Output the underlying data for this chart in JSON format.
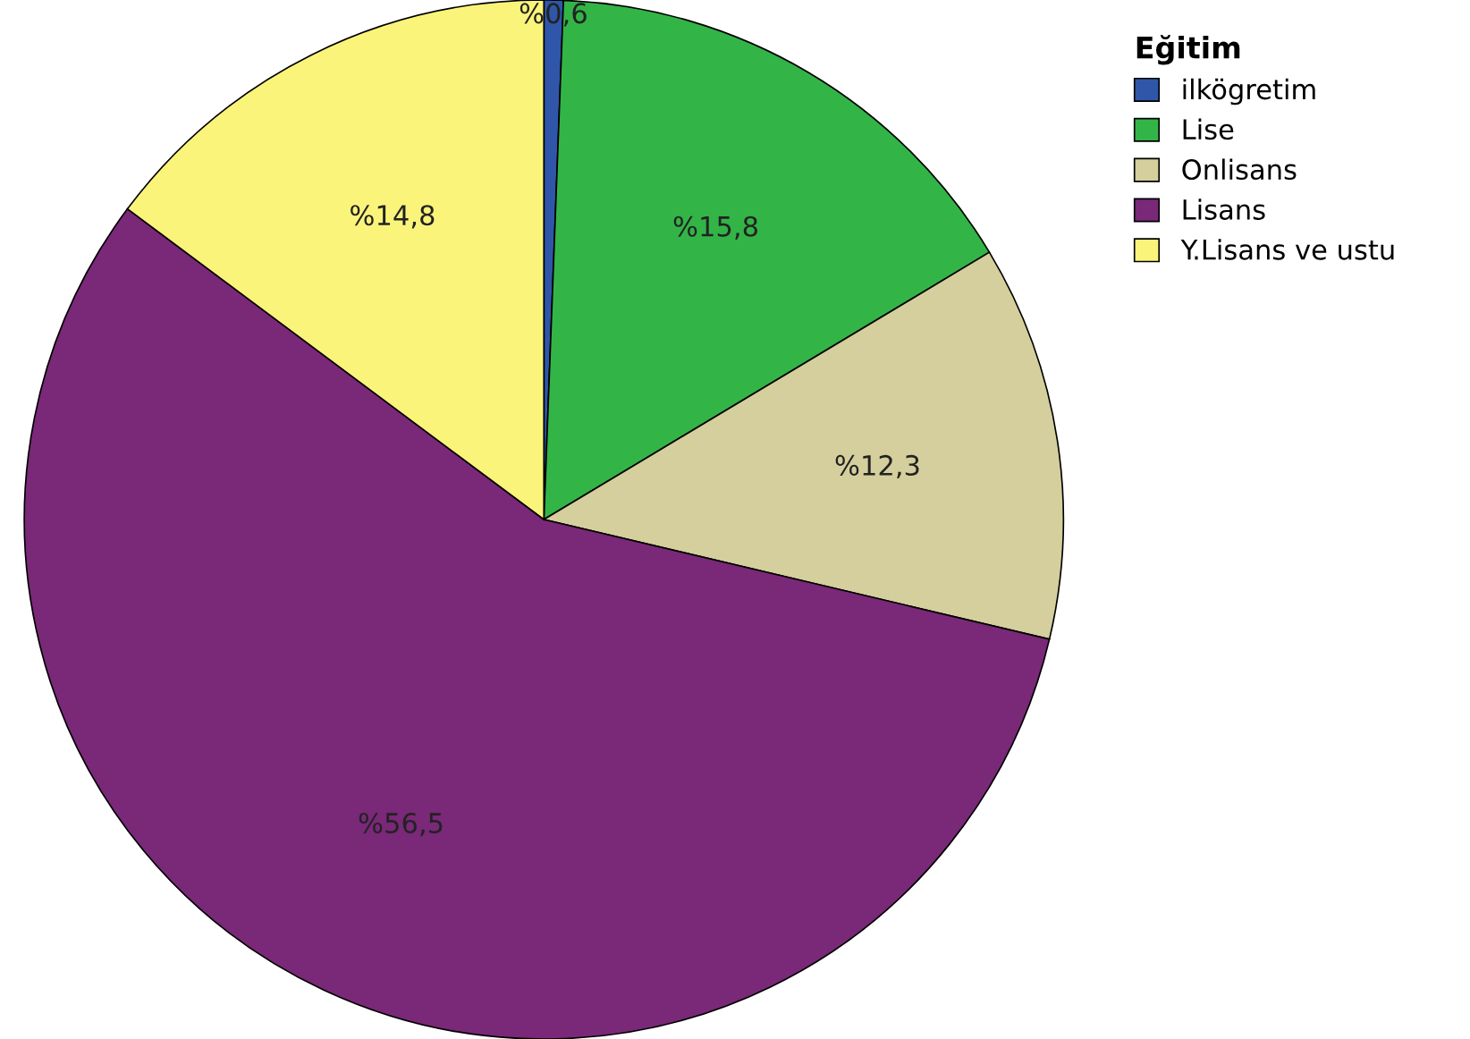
{
  "chart_data": {
    "type": "pie",
    "legend_title": "Eğitim",
    "categories": [
      "ilkögretim",
      "Lise",
      "Onlisans",
      "Lisans",
      "Y.Lisans ve ustu"
    ],
    "values": [
      0.6,
      15.8,
      12.3,
      56.5,
      14.8
    ],
    "colors": [
      "#2f56a8",
      "#33b447",
      "#d4cf9c",
      "#7a2878",
      "#fbf47a"
    ],
    "value_labels": [
      "%0,6",
      "%15,8",
      "%12,3",
      "%56,5",
      "%14,8"
    ],
    "legend": "top right"
  }
}
